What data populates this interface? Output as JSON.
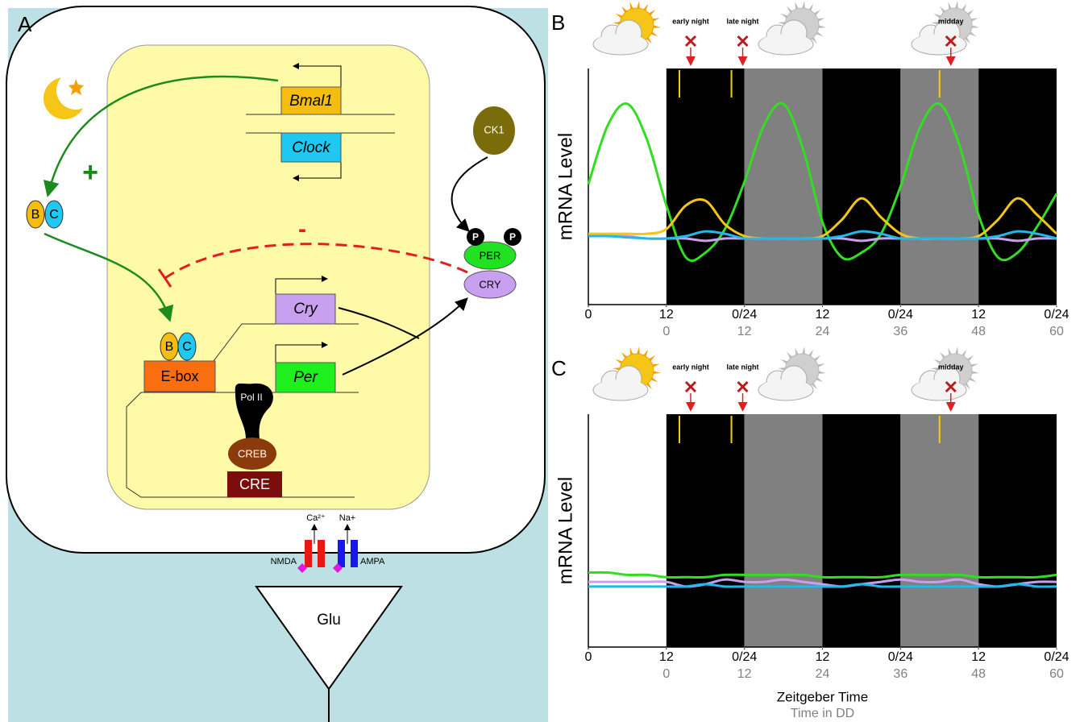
{
  "panel_a": {
    "label": "A",
    "genes": {
      "bmal1": "Bmal1",
      "clock": "Clock",
      "cry": "Cry",
      "per": "Per"
    },
    "activation": "+",
    "repression": "-",
    "complex": [
      "B",
      "C"
    ],
    "ebox": "E-box",
    "ebox_complex": [
      "B",
      "C"
    ],
    "kinase": "CK1",
    "phospho": [
      "P",
      "P"
    ],
    "proteins": [
      "PER",
      "CRY"
    ],
    "pol": "Pol II",
    "creb": "CREB",
    "cre": "CRE",
    "ions": [
      "Ca²⁺",
      "Na+"
    ],
    "receptors": [
      "NMDA",
      "AMPA"
    ],
    "transmitter": "Glu"
  },
  "chart_data": [
    {
      "type": "line",
      "panel": "B",
      "ylabel": "mRNA Level",
      "xlim": [
        -12,
        60
      ],
      "ylim": [
        0,
        1
      ],
      "xticks": [
        {
          "value": -12,
          "label": "0"
        },
        {
          "value": 0,
          "label": "12"
        },
        {
          "value": 12,
          "label": "0/24"
        },
        {
          "value": 24,
          "label": "12"
        },
        {
          "value": 36,
          "label": "0/24"
        },
        {
          "value": 48,
          "label": "12"
        },
        {
          "value": 60,
          "label": "0/24"
        }
      ],
      "xticks_dd": [
        0,
        12,
        24,
        36,
        48,
        60
      ],
      "bands": [
        {
          "from": -12,
          "to": 0,
          "color": "#ffffff"
        },
        {
          "from": 0,
          "to": 12,
          "color": "#000000"
        },
        {
          "from": 12,
          "to": 24,
          "color": "#808080"
        },
        {
          "from": 24,
          "to": 36,
          "color": "#000000"
        },
        {
          "from": 36,
          "to": 48,
          "color": "#808080"
        },
        {
          "from": 48,
          "to": 60,
          "color": "#000000"
        }
      ],
      "pulses": [
        {
          "label": "early night",
          "x": 2
        },
        {
          "label": "late night",
          "x": 10
        },
        {
          "label": "midday",
          "x": 42
        }
      ],
      "x": [
        -12,
        -9,
        -6,
        -3,
        0,
        3,
        6,
        9,
        12,
        15,
        18,
        21,
        24,
        27,
        30,
        33,
        36,
        39,
        42,
        45,
        48,
        51,
        54,
        57,
        60
      ],
      "series": [
        {
          "color": "#33dd22",
          "values": [
            0.51,
            0.76,
            0.85,
            0.7,
            0.42,
            0.2,
            0.22,
            0.32,
            0.52,
            0.76,
            0.85,
            0.66,
            0.35,
            0.2,
            0.22,
            0.3,
            0.5,
            0.75,
            0.85,
            0.68,
            0.38,
            0.2,
            0.22,
            0.33,
            0.47
          ]
        },
        {
          "color": "#f5c518",
          "values": [
            0.3,
            0.3,
            0.3,
            0.3,
            0.32,
            0.42,
            0.44,
            0.34,
            0.29,
            0.28,
            0.28,
            0.28,
            0.29,
            0.36,
            0.45,
            0.37,
            0.3,
            0.28,
            0.28,
            0.28,
            0.29,
            0.36,
            0.45,
            0.38,
            0.3
          ]
        },
        {
          "color": "#c9a0f0",
          "values": [
            0.29,
            0.29,
            0.29,
            0.28,
            0.28,
            0.28,
            0.27,
            0.28,
            0.28,
            0.28,
            0.28,
            0.28,
            0.28,
            0.28,
            0.27,
            0.28,
            0.28,
            0.28,
            0.28,
            0.28,
            0.28,
            0.28,
            0.27,
            0.28,
            0.28
          ]
        },
        {
          "color": "#22b8e8",
          "values": [
            0.29,
            0.29,
            0.285,
            0.28,
            0.28,
            0.29,
            0.31,
            0.3,
            0.28,
            0.28,
            0.28,
            0.28,
            0.28,
            0.29,
            0.31,
            0.3,
            0.28,
            0.28,
            0.28,
            0.28,
            0.28,
            0.29,
            0.31,
            0.3,
            0.28
          ]
        }
      ]
    },
    {
      "type": "line",
      "panel": "C",
      "ylabel": "mRNA Level",
      "xlabel": "Zeitgeber Time",
      "xlabel2": "Time in DD",
      "xlim": [
        -12,
        60
      ],
      "ylim": [
        0,
        1
      ],
      "xticks": [
        {
          "value": -12,
          "label": "0"
        },
        {
          "value": 0,
          "label": "12"
        },
        {
          "value": 12,
          "label": "0/24"
        },
        {
          "value": 24,
          "label": "12"
        },
        {
          "value": 36,
          "label": "0/24"
        },
        {
          "value": 48,
          "label": "12"
        },
        {
          "value": 60,
          "label": "0/24"
        }
      ],
      "xticks_dd": [
        0,
        12,
        24,
        36,
        48,
        60
      ],
      "bands": [
        {
          "from": -12,
          "to": 0,
          "color": "#ffffff"
        },
        {
          "from": 0,
          "to": 12,
          "color": "#000000"
        },
        {
          "from": 12,
          "to": 24,
          "color": "#808080"
        },
        {
          "from": 24,
          "to": 36,
          "color": "#000000"
        },
        {
          "from": 36,
          "to": 48,
          "color": "#808080"
        },
        {
          "from": 48,
          "to": 60,
          "color": "#000000"
        }
      ],
      "pulses": [
        {
          "label": "early night",
          "x": 2
        },
        {
          "label": "late night",
          "x": 10
        },
        {
          "label": "midday",
          "x": 42
        }
      ],
      "x": [
        -12,
        -9,
        -6,
        -3,
        0,
        3,
        6,
        9,
        12,
        15,
        18,
        21,
        24,
        27,
        30,
        33,
        36,
        39,
        42,
        45,
        48,
        51,
        54,
        57,
        60
      ],
      "series": [
        {
          "color": "#33dd22",
          "values": [
            0.32,
            0.32,
            0.31,
            0.31,
            0.3,
            0.3,
            0.3,
            0.31,
            0.31,
            0.31,
            0.31,
            0.31,
            0.3,
            0.3,
            0.3,
            0.3,
            0.31,
            0.31,
            0.31,
            0.31,
            0.3,
            0.3,
            0.3,
            0.3,
            0.31
          ]
        },
        {
          "color": "#c9a0f0",
          "values": [
            0.28,
            0.28,
            0.28,
            0.28,
            0.28,
            0.26,
            0.27,
            0.29,
            0.28,
            0.28,
            0.29,
            0.28,
            0.27,
            0.26,
            0.27,
            0.28,
            0.29,
            0.28,
            0.28,
            0.29,
            0.27,
            0.26,
            0.27,
            0.28,
            0.28
          ]
        },
        {
          "color": "#22b8e8",
          "values": [
            0.26,
            0.26,
            0.26,
            0.26,
            0.26,
            0.26,
            0.27,
            0.26,
            0.26,
            0.26,
            0.26,
            0.26,
            0.26,
            0.26,
            0.27,
            0.26,
            0.26,
            0.26,
            0.26,
            0.26,
            0.26,
            0.26,
            0.27,
            0.26,
            0.26
          ]
        }
      ]
    }
  ]
}
